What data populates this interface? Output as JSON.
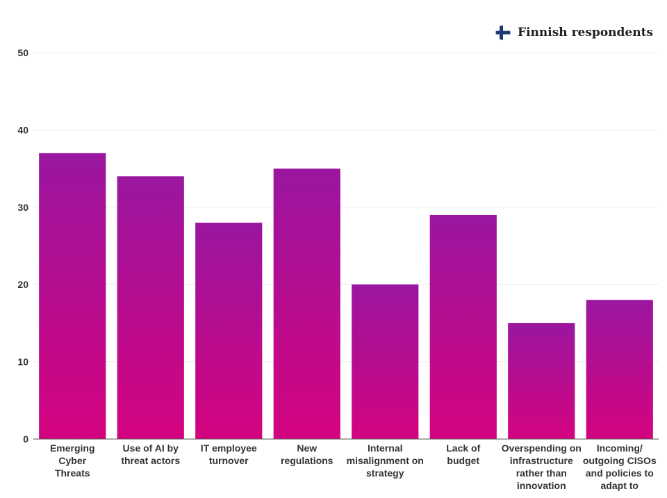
{
  "legend": {
    "label": "Finnish respondents",
    "flag_icon": "finland-flag-icon"
  },
  "colors": {
    "bar_top": "#9a169f",
    "bar_bottom": "#d4037f",
    "grid": "#ececec",
    "axis": "#555555",
    "flag_cross": "#1d3b73"
  },
  "chart_data": {
    "type": "bar",
    "title": "",
    "xlabel": "",
    "ylabel": "",
    "ylim": [
      0,
      50
    ],
    "yticks": [
      0,
      10,
      20,
      30,
      40,
      50
    ],
    "grid": true,
    "legend_position": "top-right",
    "categories": [
      [
        "Emerging",
        "Cyber",
        "Threats"
      ],
      [
        "Use of AI by",
        "threat actors"
      ],
      [
        "IT employee",
        "turnover"
      ],
      [
        "New",
        "regulations"
      ],
      [
        "Internal",
        "misalignment on",
        "strategy"
      ],
      [
        "Lack of",
        "budget"
      ],
      [
        "Overspending on",
        "infrastructure",
        "rather than",
        "innovation"
      ],
      [
        "Incoming/",
        "outgoing CISOs",
        "and policies to",
        "adapt to"
      ]
    ],
    "series": [
      {
        "name": "Finnish respondents",
        "values": [
          37,
          34,
          28,
          35,
          20,
          29,
          15,
          18
        ]
      }
    ]
  }
}
